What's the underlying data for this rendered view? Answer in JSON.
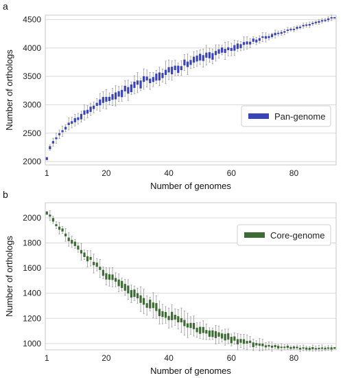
{
  "chart_data": [
    {
      "type": "box",
      "panel_label": "a",
      "xlabel": "Number of genomes",
      "ylabel": "Number  of orthologs",
      "x_ticks": [
        1,
        20,
        40,
        60,
        80
      ],
      "y_ticks": [
        2000,
        2500,
        3000,
        3500,
        4000,
        4500
      ],
      "xlim": [
        0.5,
        93.5
      ],
      "ylim": [
        1940,
        4580
      ],
      "grid": "horizontal",
      "legend": {
        "label": "Pan-genome",
        "position": "center-right"
      },
      "color": "#3a43b8",
      "series": [
        {
          "name": "Pan-genome",
          "curve": "increasing",
          "start": 2040,
          "end": 4540,
          "spread_max": 120
        }
      ]
    },
    {
      "type": "box",
      "panel_label": "b",
      "xlabel": "Number of genomes",
      "ylabel": "Number  of orthologs",
      "x_ticks": [
        1,
        20,
        40,
        60,
        80
      ],
      "y_ticks": [
        1000,
        1200,
        1400,
        1600,
        1800,
        2000
      ],
      "xlim": [
        0.5,
        93.5
      ],
      "ylim": [
        950,
        2120
      ],
      "grid": "horizontal",
      "legend": {
        "label": "Core-genome",
        "position": "top-right"
      },
      "color": "#3d6b34",
      "series": [
        {
          "name": "Core-genome",
          "curve": "decreasing",
          "start": 2040,
          "end": 960,
          "spread_max": 60
        }
      ]
    }
  ]
}
